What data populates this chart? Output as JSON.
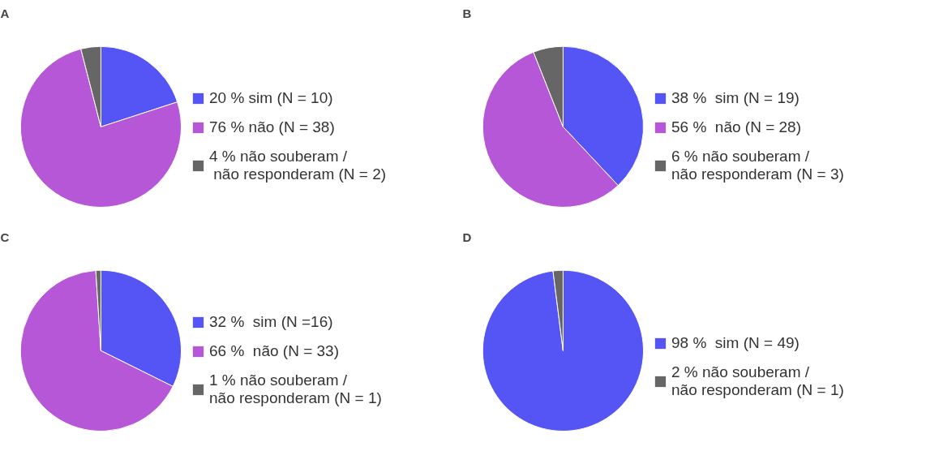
{
  "chart_data": [
    {
      "type": "pie",
      "title": "A",
      "categories": [
        "20 % sim (N = 10)",
        "76 % não (N = 38)",
        "4 % não souberam /\n não responderam (N = 2)"
      ],
      "values": [
        20,
        76,
        4
      ],
      "colors": [
        "#5555f5",
        "#b657d8",
        "#666666"
      ],
      "legend": "right"
    },
    {
      "type": "pie",
      "title": "B",
      "categories": [
        "38 %  sim (N = 19)",
        "56 %  não (N = 28)",
        "6 % não souberam /\nnão responderam (N = 3)"
      ],
      "values": [
        38,
        56,
        6
      ],
      "colors": [
        "#5555f5",
        "#b657d8",
        "#666666"
      ],
      "legend": "right"
    },
    {
      "type": "pie",
      "title": "C",
      "categories": [
        "32 %  sim (N =16)",
        "66 %  não (N = 33)",
        "1 % não souberam /\nnão responderam (N = 1)"
      ],
      "values": [
        32,
        66,
        1
      ],
      "colors": [
        "#5555f5",
        "#b657d8",
        "#666666"
      ],
      "legend": "right"
    },
    {
      "type": "pie",
      "title": "D",
      "categories": [
        "98 %  sim (N = 49)",
        "2 % não souberam /\nnão responderam (N = 1)"
      ],
      "values": [
        98,
        2
      ],
      "colors": [
        "#5555f5",
        "#666666"
      ],
      "legend": "right"
    }
  ]
}
